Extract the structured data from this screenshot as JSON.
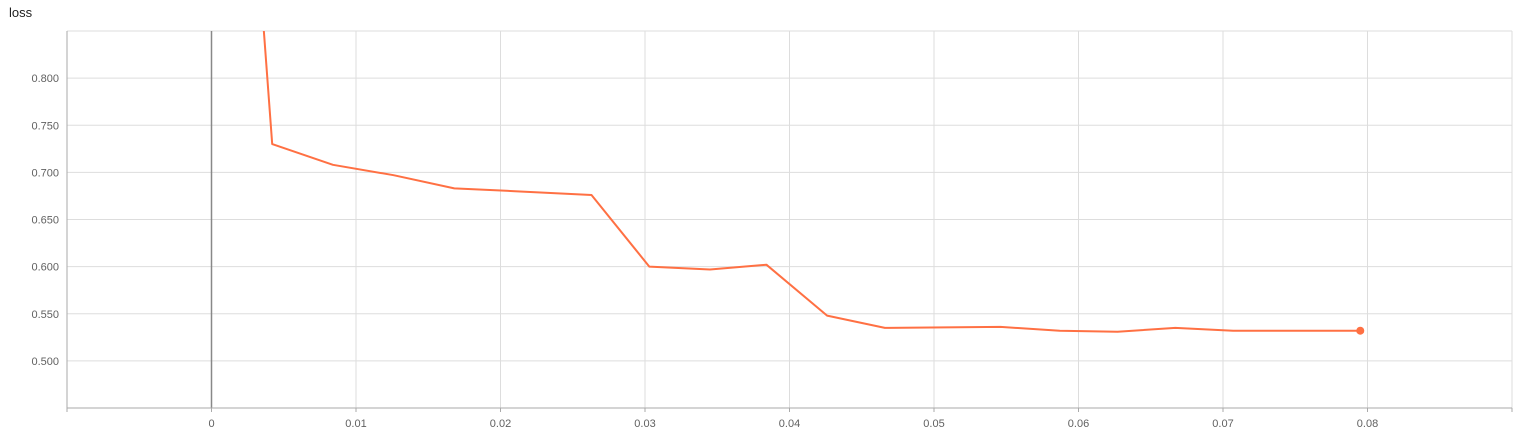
{
  "chart_data": {
    "type": "line",
    "title": "loss",
    "xlabel": "",
    "ylabel": "",
    "xlim": [
      -0.01,
      0.09
    ],
    "ylim": [
      0.45,
      0.85
    ],
    "x_ticks": [
      "0",
      "0.01",
      "0.02",
      "0.03",
      "0.04",
      "0.05",
      "0.06",
      "0.07",
      "0.08"
    ],
    "y_ticks": [
      "0.500",
      "0.550",
      "0.600",
      "0.650",
      "0.700",
      "0.750",
      "0.800"
    ],
    "grid": true,
    "legend": "none",
    "series": [
      {
        "color": "#ff7043",
        "x": [
          0.0036,
          0.0042,
          0.0084,
          0.0126,
          0.0168,
          0.021,
          0.0263,
          0.0303,
          0.0345,
          0.0384,
          0.0426,
          0.0466,
          0.0546,
          0.0587,
          0.0627,
          0.0667,
          0.0707,
          0.0747,
          0.0795
        ],
        "y": [
          0.855,
          0.73,
          0.708,
          0.697,
          0.683,
          0.68,
          0.676,
          0.6,
          0.597,
          0.602,
          0.548,
          0.535,
          0.536,
          0.532,
          0.531,
          0.535,
          0.532,
          0.532,
          0.532
        ]
      }
    ]
  }
}
